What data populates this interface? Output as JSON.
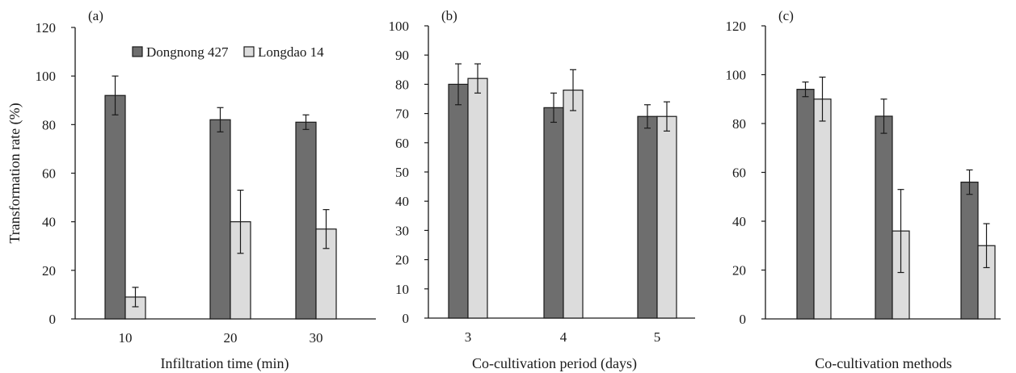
{
  "colors": {
    "series1": "#6e6e6e",
    "series2": "#dcdcdc",
    "bar_stroke": "#1a1a1a",
    "axis": "#1a1a1a"
  },
  "chart_data": [
    {
      "type": "bar",
      "panel_label": "(a)",
      "title": "",
      "xlabel": "Infiltration time (min)",
      "ylabel": "Transformation rate (%)",
      "ylim": [
        0,
        120
      ],
      "yticks": [
        0,
        20,
        40,
        60,
        80,
        100,
        120
      ],
      "grid": false,
      "legend": "top",
      "categories": [
        "10",
        "20",
        "30"
      ],
      "series": [
        {
          "name": "Dongnong 427",
          "values": [
            92,
            82,
            81
          ],
          "errors": [
            8,
            5,
            3
          ]
        },
        {
          "name": "Longdao 14",
          "values": [
            9,
            40,
            37
          ],
          "errors": [
            4,
            13,
            8
          ]
        }
      ]
    },
    {
      "type": "bar",
      "panel_label": "(b)",
      "title": "",
      "xlabel": "Co-cultivation period (days)",
      "ylabel": "",
      "ylim": [
        0,
        100
      ],
      "yticks": [
        0,
        10,
        20,
        30,
        40,
        50,
        60,
        70,
        80,
        90,
        100
      ],
      "grid": false,
      "categories": [
        "3",
        "4",
        "5"
      ],
      "series": [
        {
          "name": "Dongnong 427",
          "values": [
            80,
            72,
            69
          ],
          "errors": [
            7,
            5,
            4
          ]
        },
        {
          "name": "Longdao 14",
          "values": [
            82,
            78,
            69
          ],
          "errors": [
            5,
            7,
            5
          ]
        }
      ]
    },
    {
      "type": "bar",
      "panel_label": "(c)",
      "title": "",
      "xlabel": "Co-cultivation methods",
      "ylabel": "",
      "ylim": [
        0,
        120
      ],
      "yticks": [
        0,
        20,
        40,
        60,
        80,
        100,
        120
      ],
      "grid": false,
      "categories": [
        "",
        "",
        ""
      ],
      "series": [
        {
          "name": "Dongnong 427",
          "values": [
            94,
            83,
            56
          ],
          "errors": [
            3,
            7,
            5
          ]
        },
        {
          "name": "Longdao 14",
          "values": [
            90,
            36,
            30
          ],
          "errors": [
            9,
            17,
            9
          ]
        }
      ]
    }
  ]
}
